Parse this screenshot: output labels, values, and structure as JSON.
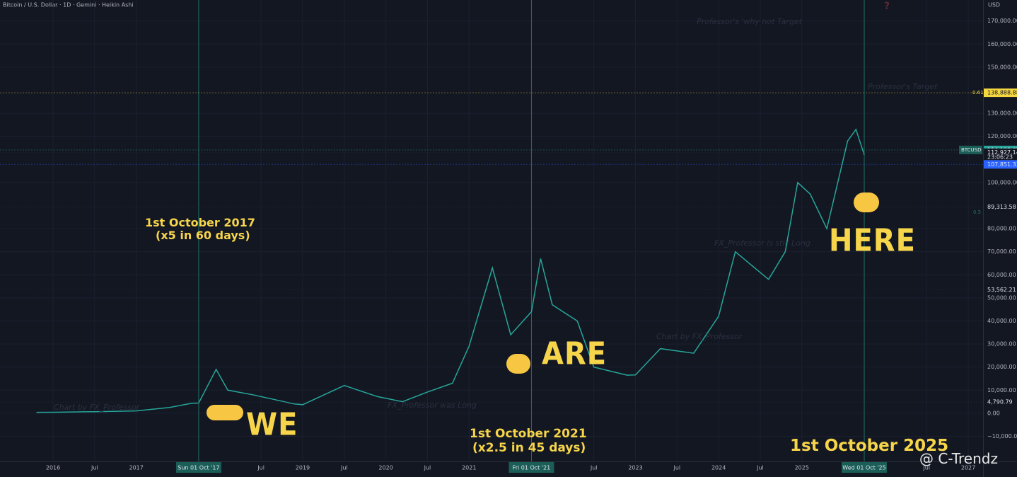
{
  "header": {
    "title": "Bitcoin / U.S. Dollar · 1D · Gemini · Heikin Ashi",
    "currency": "USD",
    "watermark": "@ C-Trendz"
  },
  "chart_data": {
    "type": "line",
    "xlim": [
      2015.362,
      2027.178
    ],
    "ylim": [
      -20900,
      179100
    ],
    "xticks": [
      {
        "value": 2016,
        "label": "2016"
      },
      {
        "value": 2016.5,
        "label": "Jul"
      },
      {
        "value": 2017,
        "label": "2017"
      },
      {
        "value": 2018.5,
        "label": "Jul"
      },
      {
        "value": 2019,
        "label": "2019"
      },
      {
        "value": 2019.5,
        "label": "Jul"
      },
      {
        "value": 2020,
        "label": "2020"
      },
      {
        "value": 2020.5,
        "label": "Jul"
      },
      {
        "value": 2021,
        "label": "2021"
      },
      {
        "value": 2022.5,
        "label": "Jul"
      },
      {
        "value": 2023,
        "label": "2023"
      },
      {
        "value": 2023.5,
        "label": "Jul"
      },
      {
        "value": 2024,
        "label": "2024"
      },
      {
        "value": 2024.5,
        "label": "Jul"
      },
      {
        "value": 2025,
        "label": "2025"
      },
      {
        "value": 2026.5,
        "label": "Jul"
      },
      {
        "value": 2027,
        "label": "2027"
      }
    ],
    "yticks": [
      {
        "value": 170000,
        "label": "170,000.00"
      },
      {
        "value": 160000,
        "label": "160,000.00"
      },
      {
        "value": 150000,
        "label": "150,000.00"
      },
      {
        "value": 130000,
        "label": "130,000.00"
      },
      {
        "value": 120000,
        "label": "120,000.00"
      },
      {
        "value": 100000,
        "label": "100,000.00"
      },
      {
        "value": 80000,
        "label": "80,000.00"
      },
      {
        "value": 70000,
        "label": "70,000.00"
      },
      {
        "value": 60000,
        "label": "60,000.00"
      },
      {
        "value": 50000,
        "label": "50,000.00"
      },
      {
        "value": 40000,
        "label": "40,000.00"
      },
      {
        "value": 30000,
        "label": "30,000.00"
      },
      {
        "value": 20000,
        "label": "20,000.00"
      },
      {
        "value": 10000,
        "label": "10,000.00"
      },
      {
        "value": 0,
        "label": "0.00"
      },
      {
        "value": -10000,
        "label": "−10,000.00"
      }
    ],
    "series": [
      {
        "name": "BTCUSD",
        "color": "#26a69a",
        "x": [
          2015.8,
          2016.0,
          2016.5,
          2017.0,
          2017.4,
          2017.67,
          2017.75,
          2017.96,
          2018.1,
          2018.4,
          2018.9,
          2019.0,
          2019.5,
          2019.9,
          2020.2,
          2020.5,
          2020.8,
          2021.0,
          2021.28,
          2021.5,
          2021.75,
          2021.86,
          2022.0,
          2022.3,
          2022.5,
          2022.9,
          2023.0,
          2023.3,
          2023.7,
          2024.0,
          2024.2,
          2024.6,
          2024.8,
          2024.95,
          2025.1,
          2025.3,
          2025.55,
          2025.65,
          2025.75
        ],
        "values": [
          400,
          430,
          650,
          1000,
          2500,
          4300,
          4400,
          19000,
          10000,
          8000,
          4000,
          3700,
          12000,
          7200,
          5000,
          9200,
          13000,
          29000,
          63000,
          34000,
          44000,
          67000,
          47000,
          40000,
          20000,
          16500,
          16600,
          28000,
          26000,
          42000,
          70000,
          58000,
          70000,
          100000,
          95000,
          80000,
          118000,
          123000,
          112000
        ]
      }
    ],
    "price_markers": [
      {
        "value": 138888.88,
        "label": "138,888.88",
        "color": "#f5d742"
      },
      {
        "value": 114108.07,
        "label": "114,108.07",
        "color": "#26a69a"
      },
      {
        "value": 112927.14,
        "label": "112,927.14",
        "color": "#131722"
      },
      {
        "value": 107851.33,
        "label": "107,851.33",
        "color": "#2962ff"
      },
      {
        "value": 89313.58,
        "label": "89,313.58",
        "color": "#131722"
      },
      {
        "value": 53562.21,
        "label": "53,562.21",
        "color": "#131722"
      },
      {
        "value": 4790.79,
        "label": "4,790.79",
        "color": "#131722"
      }
    ],
    "countdown": "23:06:23",
    "symbol": "BTCUSD",
    "fib_labels": [
      "0.61",
      "0.5"
    ],
    "date_markers": [
      {
        "value": 2017.75,
        "label": "Sun 01 Oct '17"
      },
      {
        "value": 2021.75,
        "label": "Fri 01 Oct '21"
      },
      {
        "value": 2025.75,
        "label": "Wed 01 Oct '25"
      }
    ],
    "annotations": [
      "1st October 2017",
      "(x5 in 60 days)",
      "1st October 2021",
      "(x2.5 in 45 days)",
      "1st October 2025",
      "WE",
      "ARE",
      "HERE",
      "?"
    ],
    "notes": [
      "Professor's 'why not Target",
      "Professor's Target",
      "FX_Professor is still Long",
      "Chart by FX_Professor",
      "Chart by FX_Professor",
      "FX_Professor was Long"
    ]
  }
}
